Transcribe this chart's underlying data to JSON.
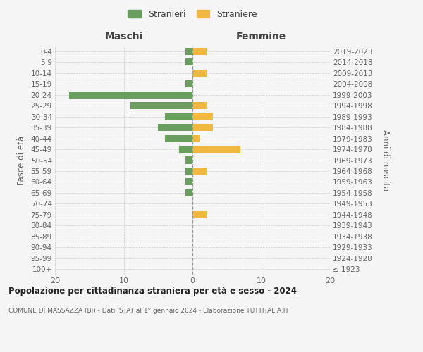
{
  "age_groups": [
    "100+",
    "95-99",
    "90-94",
    "85-89",
    "80-84",
    "75-79",
    "70-74",
    "65-69",
    "60-64",
    "55-59",
    "50-54",
    "45-49",
    "40-44",
    "35-39",
    "30-34",
    "25-29",
    "20-24",
    "15-19",
    "10-14",
    "5-9",
    "0-4"
  ],
  "birth_years": [
    "≤ 1923",
    "1924-1928",
    "1929-1933",
    "1934-1938",
    "1939-1943",
    "1944-1948",
    "1949-1953",
    "1954-1958",
    "1959-1963",
    "1964-1968",
    "1969-1973",
    "1974-1978",
    "1979-1983",
    "1984-1988",
    "1989-1993",
    "1994-1998",
    "1999-2003",
    "2004-2008",
    "2009-2013",
    "2014-2018",
    "2019-2023"
  ],
  "maschi": [
    0,
    0,
    0,
    0,
    0,
    0,
    0,
    1,
    1,
    1,
    1,
    2,
    4,
    5,
    4,
    9,
    18,
    1,
    0,
    1,
    1
  ],
  "femmine": [
    0,
    0,
    0,
    0,
    0,
    2,
    0,
    0,
    0,
    2,
    0,
    7,
    1,
    3,
    3,
    2,
    0,
    0,
    2,
    0,
    2
  ],
  "color_maschi": "#6a9e5e",
  "color_femmine": "#f0b840",
  "title": "Popolazione per cittadinanza straniera per età e sesso - 2024",
  "subtitle": "COMUNE DI MASSAZZA (BI) - Dati ISTAT al 1° gennaio 2024 - Elaborazione TUTTITALIA.IT",
  "ylabel_left": "Fasce di età",
  "ylabel_right": "Anni di nascita",
  "label_maschi_top": "Maschi",
  "label_femmine_top": "Femmine",
  "legend_maschi": "Stranieri",
  "legend_femmine": "Straniere",
  "xlim": 20,
  "background_color": "#f5f5f5",
  "grid_color": "#cccccc"
}
